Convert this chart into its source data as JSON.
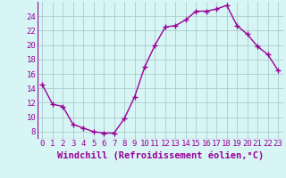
{
  "hours": [
    0,
    1,
    2,
    3,
    4,
    5,
    6,
    7,
    8,
    9,
    10,
    11,
    12,
    13,
    14,
    15,
    16,
    17,
    18,
    19,
    20,
    21,
    22,
    23
  ],
  "values": [
    14.5,
    11.8,
    11.5,
    9.0,
    8.5,
    8.0,
    7.8,
    7.8,
    9.8,
    12.8,
    17.0,
    20.0,
    22.5,
    22.7,
    23.5,
    24.7,
    24.7,
    25.0,
    25.5,
    22.7,
    21.5,
    19.8,
    18.7,
    16.5
  ],
  "line_color": "#990099",
  "marker": "+",
  "markersize": 4,
  "linewidth": 1.0,
  "bg_color": "#d8f5f5",
  "grid_color": "#aacccc",
  "xlabel": "Windchill (Refroidissement éolien,°C)",
  "xlabel_color": "#990099",
  "tick_color": "#990099",
  "ylim": [
    7,
    26
  ],
  "yticks": [
    8,
    10,
    12,
    14,
    16,
    18,
    20,
    22,
    24
  ],
  "xticks": [
    0,
    1,
    2,
    3,
    4,
    5,
    6,
    7,
    8,
    9,
    10,
    11,
    12,
    13,
    14,
    15,
    16,
    17,
    18,
    19,
    20,
    21,
    22,
    23
  ],
  "xtick_labels": [
    "0",
    "1",
    "2",
    "3",
    "4",
    "5",
    "6",
    "7",
    "8",
    "9",
    "10",
    "11",
    "12",
    "13",
    "14",
    "15",
    "16",
    "17",
    "18",
    "19",
    "20",
    "21",
    "22",
    "23"
  ],
  "xlabel_fontsize": 7.5,
  "tick_fontsize": 6.5,
  "markeredgewidth": 1.0
}
